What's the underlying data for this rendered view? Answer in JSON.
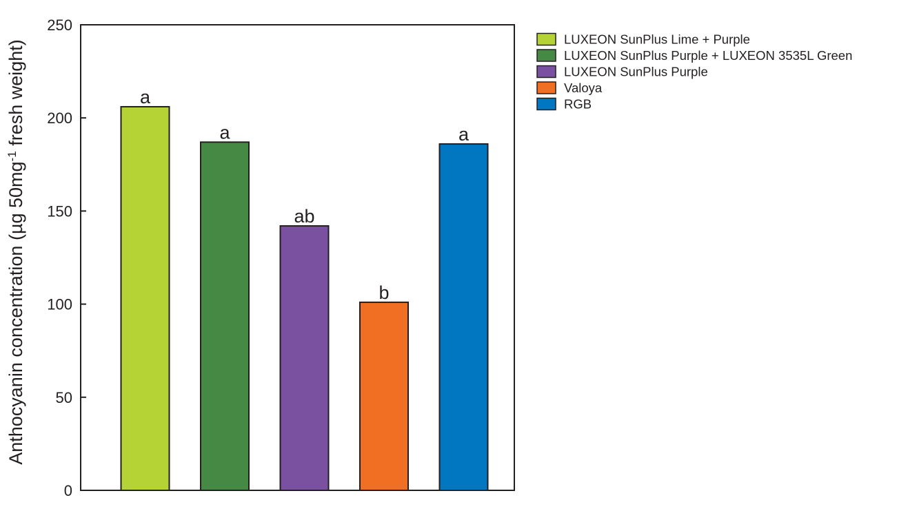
{
  "chart_data": {
    "type": "bar",
    "title": "",
    "xlabel": "",
    "ylabel": {
      "main": "Anthocyanin concentration (µg 50mg",
      "superscript": "-1",
      "tail": " fresh weight)"
    },
    "ylim": [
      0,
      250
    ],
    "yticks": [
      0,
      50,
      100,
      150,
      200,
      250
    ],
    "grid": false,
    "legend_position": "right",
    "categories": [
      "LUXEON SunPlus Lime + Purple",
      "LUXEON SunPlus Purple + LUXEON 3535L Green",
      "LUXEON SunPlus Purple",
      "Valoya",
      "RGB"
    ],
    "values": [
      206,
      187,
      142,
      101,
      186
    ],
    "significance_labels": [
      "a",
      "a",
      "ab",
      "b",
      "a"
    ],
    "colors": [
      "#b5d334",
      "#458944",
      "#7a51a0",
      "#f16f22",
      "#0077c0"
    ],
    "legend": [
      "LUXEON SunPlus Lime + Purple",
      "LUXEON SunPlus Purple + LUXEON 3535L Green",
      "LUXEON SunPlus Purple",
      "Valoya",
      "RGB"
    ]
  }
}
